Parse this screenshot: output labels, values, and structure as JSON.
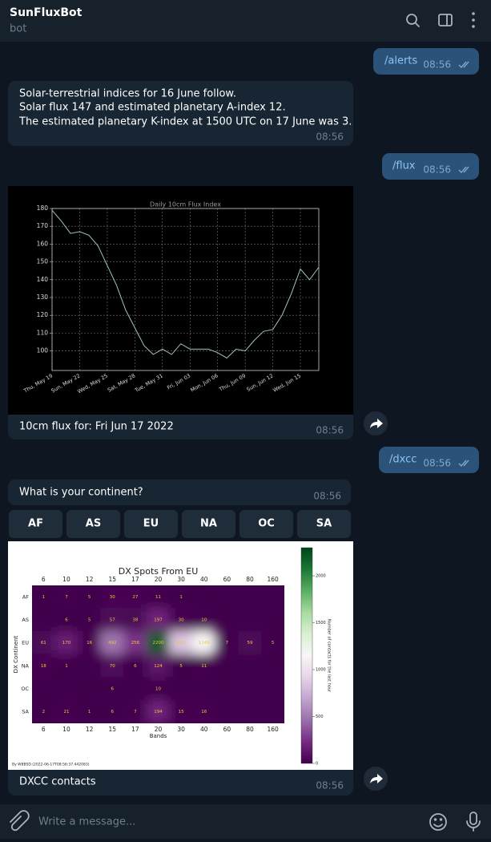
{
  "header": {
    "title": "SunFluxBot",
    "subtitle": "bot"
  },
  "messages": [
    {
      "text": "/alerts",
      "time": "08:56"
    },
    {
      "lines": [
        "Solar-terrestrial indices for 16 June follow.",
        "Solar flux 147 and estimated planetary A-index 12.",
        "The estimated planetary K-index at 1500 UTC on 17 June was 3."
      ],
      "time": "08:56"
    },
    {
      "text": "/flux",
      "time": "08:56"
    },
    {
      "caption": "10cm flux for: Fri Jun 17 2022",
      "time": "08:56"
    },
    {
      "text": "/dxcc",
      "time": "08:56"
    },
    {
      "text": "What is your continent?",
      "time": "08:56",
      "buttons": [
        "AF",
        "AS",
        "EU",
        "NA",
        "OC",
        "SA"
      ]
    },
    {
      "caption": "DXCC contacts",
      "time": "08:56"
    }
  ],
  "composer": {
    "placeholder": "Write a message..."
  },
  "chart_data": [
    {
      "type": "line",
      "title": "Daily 10cm Flux Index",
      "categories": [
        "Thu, May 19",
        null,
        null,
        "Sun, May 22",
        null,
        null,
        "Wed, May 25",
        null,
        null,
        "Sat, May 28",
        null,
        null,
        "Tue, May 31",
        null,
        null,
        "Fri, Jun 03",
        null,
        null,
        "Mon, Jun 06",
        null,
        null,
        "Thu, Jun 09",
        null,
        null,
        "Sun, Jun 12",
        null,
        null,
        "Wed, Jun 15",
        null,
        null
      ],
      "values": [
        179,
        173,
        166,
        167,
        165,
        159,
        148,
        137,
        123,
        113,
        103,
        98,
        101,
        98,
        104,
        101,
        101,
        101,
        99,
        96,
        101,
        100,
        106,
        111,
        112,
        120,
        132,
        146,
        140,
        147
      ],
      "color": "#9fc7b0",
      "ylim": [
        89,
        180
      ],
      "yticks": [
        100,
        110,
        120,
        130,
        140,
        150,
        160,
        170,
        180
      ],
      "grid": true
    },
    {
      "type": "heatmap",
      "title": "DX Spots From EU",
      "x_label": "Bands",
      "y_label": "DX Continent",
      "categories": [
        "6",
        "10",
        "12",
        "15",
        "17",
        "20",
        "30",
        "40",
        "60",
        "80",
        "160"
      ],
      "rows": [
        "AF",
        "AS",
        "EU",
        "NA",
        "OC",
        "SA"
      ],
      "values": [
        [
          1,
          7,
          5,
          30,
          27,
          11,
          1,
          null,
          null,
          null,
          null
        ],
        [
          null,
          6,
          5,
          57,
          38,
          197,
          30,
          10,
          null,
          null,
          null
        ],
        [
          61,
          170,
          16,
          492,
          256,
          2200,
          853,
          1149,
          7,
          59,
          5
        ],
        [
          18,
          1,
          null,
          70,
          6,
          124,
          5,
          11,
          null,
          null,
          null
        ],
        [
          null,
          null,
          null,
          6,
          null,
          10,
          null,
          null,
          null,
          null,
          null
        ],
        [
          2,
          21,
          1,
          6,
          7,
          194,
          15,
          16,
          null,
          null,
          null
        ]
      ],
      "label_color": "#f2c530",
      "colormap": [
        "#40004b",
        "#762a83",
        "#9970ab",
        "#c2a5cf",
        "#e7d4e8",
        "#f7f7f7",
        "#d9f0d3",
        "#a6dba0",
        "#5aae61",
        "#1b7837",
        "#00441b"
      ],
      "zlim": [
        0,
        2300
      ],
      "colorbar": {
        "label": "Number of contacts for the last hour",
        "ticks": [
          0,
          500,
          1000,
          1500,
          2000
        ]
      },
      "footer": "By W8BSD (2022-06-17T08:56:37.442083)"
    }
  ]
}
